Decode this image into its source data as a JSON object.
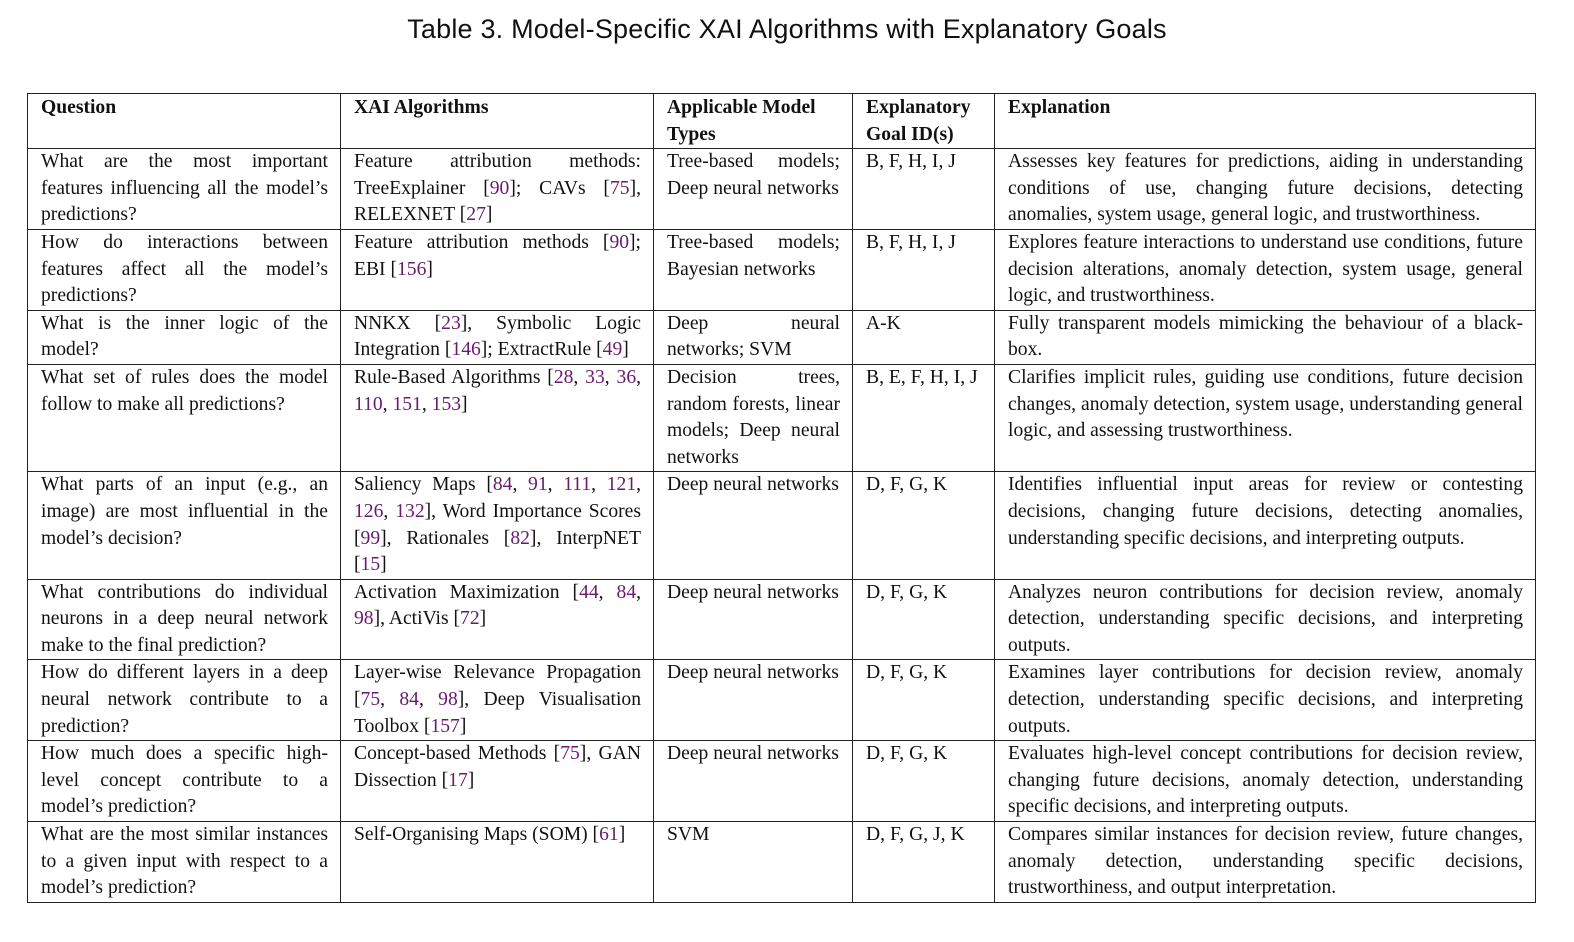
{
  "caption": "Table 3.  Model-Specific XAI Algorithms with Explanatory Goals",
  "colors": {
    "reference_link": "#6a1a6e",
    "text": "#111111",
    "border": "#222222"
  },
  "headers": {
    "question": "Question",
    "algorithms": "XAI Algorithms",
    "model_types": "Applicable Model Types",
    "goal_ids": "Explanatory Goal ID(s)",
    "explanation": "Explanation"
  },
  "rows": [
    {
      "question": "What are the most important features influencing all the model’s predictions?",
      "algorithms": [
        {
          "t": "Feature attribution methods: TreeExplainer ["
        },
        {
          "t": "90",
          "ref": true
        },
        {
          "t": "]; CAVs ["
        },
        {
          "t": "75",
          "ref": true
        },
        {
          "t": "], RELEXNET ["
        },
        {
          "t": "27",
          "ref": true
        },
        {
          "t": "]"
        }
      ],
      "model_types": "Tree-based models; Deep neural networks",
      "goal_ids": "B, F, H, I, J",
      "explanation": "Assesses key features for predictions, aiding in understanding conditions of use, changing future decisions, detecting anomalies, system usage, general logic, and trustworthiness."
    },
    {
      "question": "How do interactions between features affect all the model’s predictions?",
      "algorithms": [
        {
          "t": "Feature attribution methods ["
        },
        {
          "t": "90",
          "ref": true
        },
        {
          "t": "]; EBI ["
        },
        {
          "t": "156",
          "ref": true
        },
        {
          "t": "]"
        }
      ],
      "model_types": "Tree-based models; Bayesian networks",
      "goal_ids": "B, F, H, I, J",
      "explanation": "Explores feature interactions to understand use conditions, future decision alterations, anomaly detection, system usage, general logic, and trustworthiness."
    },
    {
      "question": "What is the inner logic of the model?",
      "algorithms": [
        {
          "t": "NNKX ["
        },
        {
          "t": "23",
          "ref": true
        },
        {
          "t": "], Symbolic Logic Integration ["
        },
        {
          "t": "146",
          "ref": true
        },
        {
          "t": "]; ExtractRule ["
        },
        {
          "t": "49",
          "ref": true
        },
        {
          "t": "]"
        }
      ],
      "model_types": "Deep neural networks; SVM",
      "goal_ids": "A-K",
      "explanation": "Fully transparent models mimicking the behaviour of a black-box."
    },
    {
      "question": "What set of rules does the model follow to make all predictions?",
      "algorithms": [
        {
          "t": "Rule-Based Algorithms ["
        },
        {
          "t": "28",
          "ref": true
        },
        {
          "t": ", "
        },
        {
          "t": "33",
          "ref": true
        },
        {
          "t": ", "
        },
        {
          "t": "36",
          "ref": true
        },
        {
          "t": ", "
        },
        {
          "t": "110",
          "ref": true
        },
        {
          "t": ", "
        },
        {
          "t": "151",
          "ref": true
        },
        {
          "t": ", "
        },
        {
          "t": "153",
          "ref": true
        },
        {
          "t": "]"
        }
      ],
      "model_types": "Decision trees, random forests, linear models; Deep neural networks",
      "goal_ids": "B, E, F, H, I, J",
      "explanation": "Clarifies implicit rules, guiding use conditions, future decision changes, anomaly detection, system usage, understanding general logic, and assessing trustworthiness."
    },
    {
      "question": "What parts of an input (e.g., an image) are most influential in the model’s decision?",
      "algorithms": [
        {
          "t": "Saliency Maps ["
        },
        {
          "t": "84",
          "ref": true
        },
        {
          "t": ", "
        },
        {
          "t": "91",
          "ref": true
        },
        {
          "t": ", "
        },
        {
          "t": "111",
          "ref": true
        },
        {
          "t": ", "
        },
        {
          "t": "121",
          "ref": true
        },
        {
          "t": ", "
        },
        {
          "t": "126",
          "ref": true
        },
        {
          "t": ", "
        },
        {
          "t": "132",
          "ref": true
        },
        {
          "t": "], Word Importance Scores ["
        },
        {
          "t": "99",
          "ref": true
        },
        {
          "t": "], Rationales ["
        },
        {
          "t": "82",
          "ref": true
        },
        {
          "t": "], InterpNET ["
        },
        {
          "t": "15",
          "ref": true
        },
        {
          "t": "]"
        }
      ],
      "model_types": "Deep neural networks",
      "goal_ids": "D, F, G, K",
      "explanation": "Identifies influential input areas for review or contesting decisions, changing future decisions, detecting anomalies, understanding specific decisions, and interpreting outputs."
    },
    {
      "question": "What contributions do individual neurons in a deep neural network make to the final prediction?",
      "algorithms": [
        {
          "t": "Activation Maximization ["
        },
        {
          "t": "44",
          "ref": true
        },
        {
          "t": ", "
        },
        {
          "t": "84",
          "ref": true
        },
        {
          "t": ", "
        },
        {
          "t": "98",
          "ref": true
        },
        {
          "t": "], ActiVis ["
        },
        {
          "t": "72",
          "ref": true
        },
        {
          "t": "]"
        }
      ],
      "model_types": "Deep neural networks",
      "goal_ids": "D, F, G, K",
      "explanation": "Analyzes neuron contributions for decision review, anomaly detection, understanding specific decisions, and interpreting outputs."
    },
    {
      "question": "How do different layers in a deep neural network contribute to a prediction?",
      "algorithms": [
        {
          "t": "Layer-wise Relevance Propagation ["
        },
        {
          "t": "75",
          "ref": true
        },
        {
          "t": ", "
        },
        {
          "t": "84",
          "ref": true
        },
        {
          "t": ", "
        },
        {
          "t": "98",
          "ref": true
        },
        {
          "t": "], Deep Visualisation Toolbox ["
        },
        {
          "t": "157",
          "ref": true
        },
        {
          "t": "]"
        }
      ],
      "model_types": "Deep neural networks",
      "goal_ids": "D, F, G, K",
      "explanation": "Examines layer contributions for decision review, anomaly detection, understanding specific decisions, and interpreting outputs."
    },
    {
      "question": "How much does a specific high-level concept contribute to a model’s prediction?",
      "algorithms": [
        {
          "t": "Concept-based Methods ["
        },
        {
          "t": "75",
          "ref": true
        },
        {
          "t": "], GAN Dissection ["
        },
        {
          "t": "17",
          "ref": true
        },
        {
          "t": "]"
        }
      ],
      "model_types": "Deep neural networks",
      "goal_ids": "D, F, G, K",
      "explanation": "Evaluates high-level concept contributions for decision review, changing future decisions, anomaly detection, understanding specific decisions, and interpreting outputs."
    },
    {
      "question": "What are the most similar instances to a given input with respect to a model’s prediction?",
      "algorithms": [
        {
          "t": "Self-Organising Maps (SOM) ["
        },
        {
          "t": "61",
          "ref": true
        },
        {
          "t": "]"
        }
      ],
      "model_types": "SVM",
      "goal_ids": "D, F, G, J, K",
      "explanation": "Compares similar instances for decision review, future changes, anomaly detection, understanding specific decisions, trustworthiness, and output interpretation."
    }
  ]
}
